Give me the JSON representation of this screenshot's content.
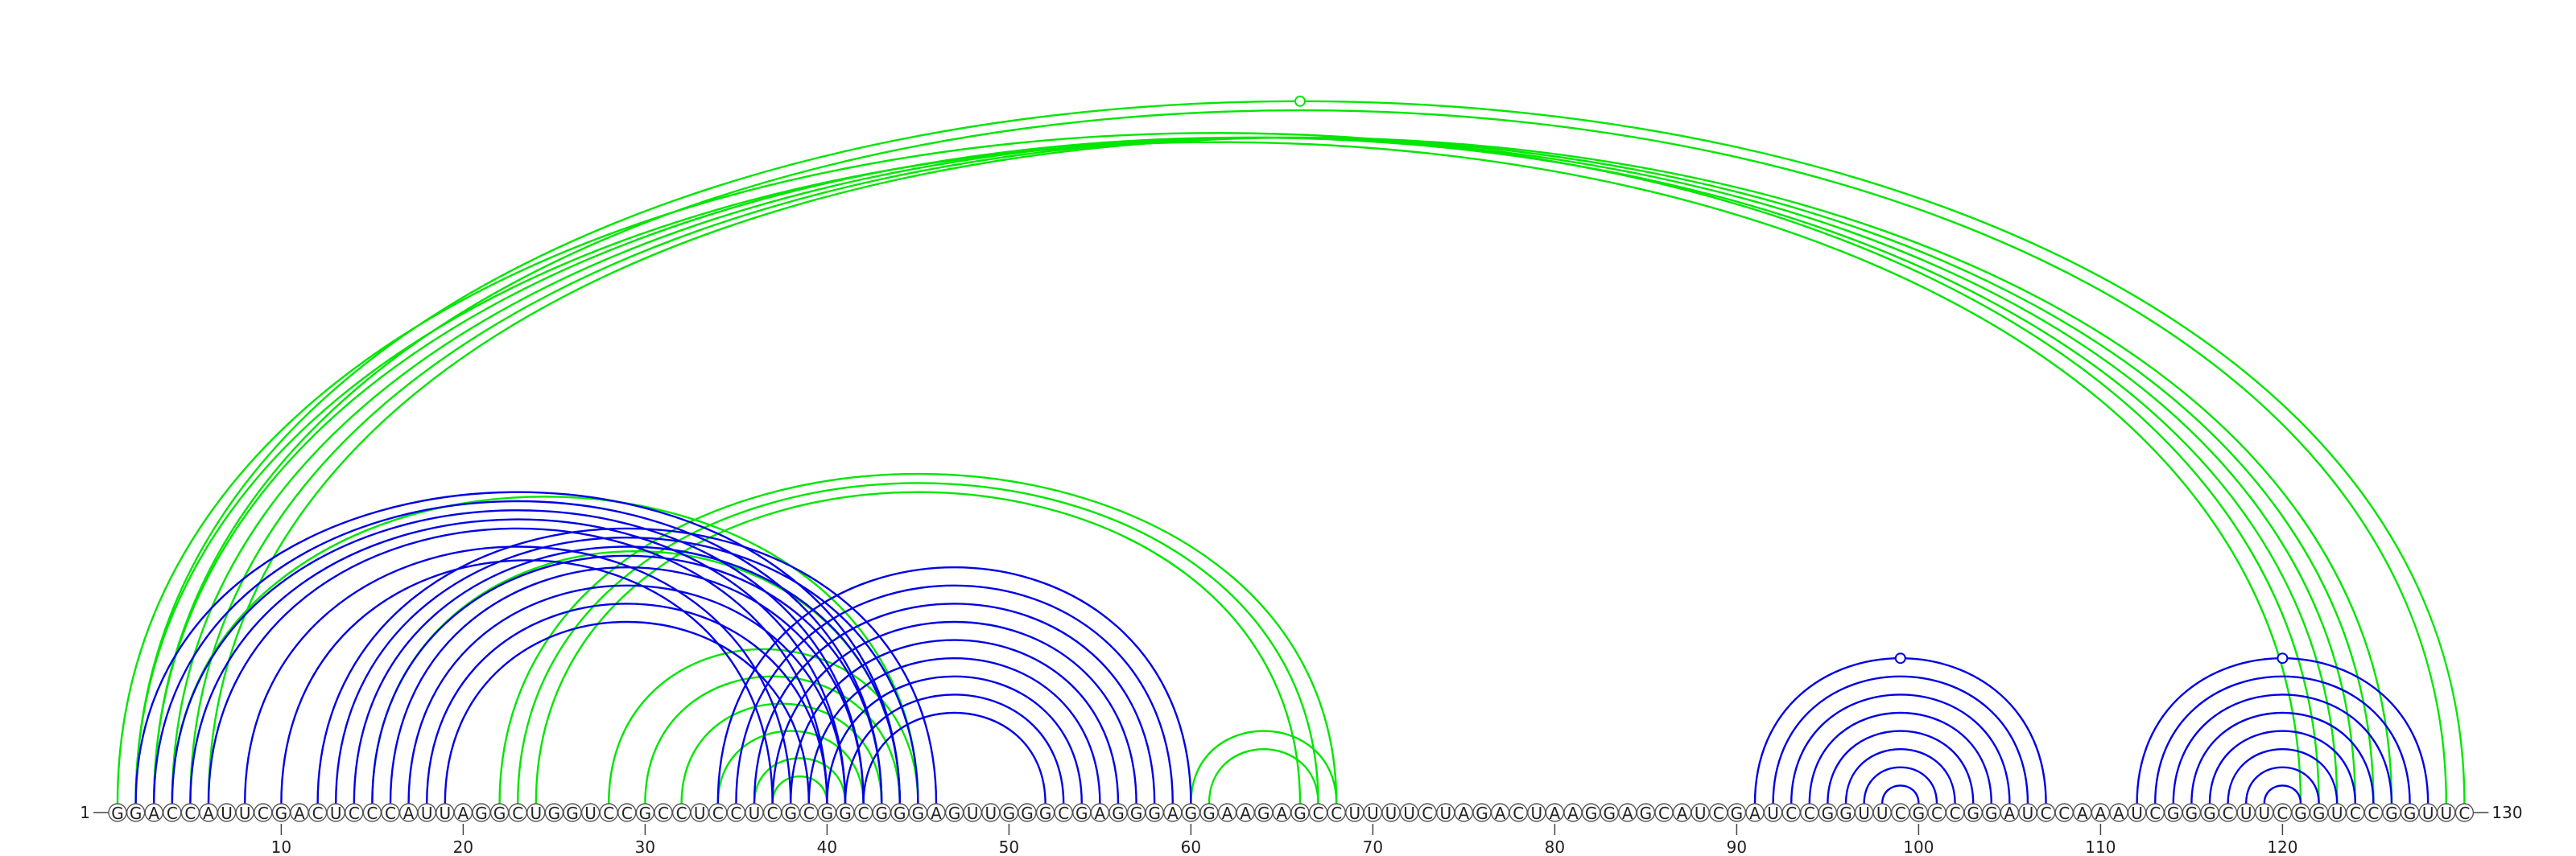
{
  "sequence": "GGACCAUUCGACUCCCAUUAGGCUGGUCCGCCUCCUCGCGGCGGGAGUUGGGCGAGGGAGGAAGAGCCUUUUCUAGACUAAGGAGCAUCGAUCCGGUUCGCCGGAUCCAAAUCGGGCUUCGGUCCGGUUC",
  "start_label": "1",
  "end_label": "130",
  "tick_labels": [
    "10",
    "20",
    "30",
    "40",
    "50",
    "60",
    "70",
    "80",
    "90",
    "100",
    "110",
    "120"
  ],
  "colors": {
    "green_arcs": "#00e600",
    "blue_arcs": "#0000e6"
  },
  "green_pairs": [
    [
      1,
      122
    ],
    [
      2,
      121
    ],
    [
      3,
      123
    ],
    [
      4,
      124
    ],
    [
      5,
      125
    ],
    [
      6,
      126
    ],
    [
      2,
      130
    ],
    [
      3,
      129
    ],
    [
      4,
      45
    ],
    [
      15,
      44
    ],
    [
      22,
      68
    ],
    [
      23,
      67
    ],
    [
      24,
      66
    ],
    [
      28,
      45
    ],
    [
      30,
      44
    ],
    [
      32,
      43
    ],
    [
      34,
      42
    ],
    [
      36,
      41
    ],
    [
      37,
      40
    ],
    [
      60,
      68
    ],
    [
      61,
      67
    ]
  ],
  "green_markers": [
    66
  ],
  "blue_pairs": [
    [
      2,
      44
    ],
    [
      3,
      43
    ],
    [
      4,
      42
    ],
    [
      5,
      41
    ],
    [
      6,
      40
    ],
    [
      8,
      38
    ],
    [
      10,
      37
    ],
    [
      12,
      46
    ],
    [
      13,
      45
    ],
    [
      14,
      44
    ],
    [
      15,
      43
    ],
    [
      16,
      42
    ],
    [
      17,
      41
    ],
    [
      18,
      40
    ],
    [
      19,
      39
    ],
    [
      34,
      60
    ],
    [
      35,
      59
    ],
    [
      36,
      58
    ],
    [
      37,
      57
    ],
    [
      38,
      56
    ],
    [
      39,
      55
    ],
    [
      40,
      54
    ],
    [
      41,
      53
    ],
    [
      42,
      52
    ],
    [
      91,
      107
    ],
    [
      92,
      106
    ],
    [
      93,
      105
    ],
    [
      94,
      104
    ],
    [
      95,
      103
    ],
    [
      96,
      102
    ],
    [
      97,
      101
    ],
    [
      98,
      100
    ],
    [
      112,
      128
    ],
    [
      113,
      127
    ],
    [
      114,
      126
    ],
    [
      115,
      125
    ],
    [
      116,
      124
    ],
    [
      117,
      123
    ],
    [
      118,
      122
    ],
    [
      119,
      121
    ]
  ],
  "blue_markers": [
    99,
    120
  ]
}
